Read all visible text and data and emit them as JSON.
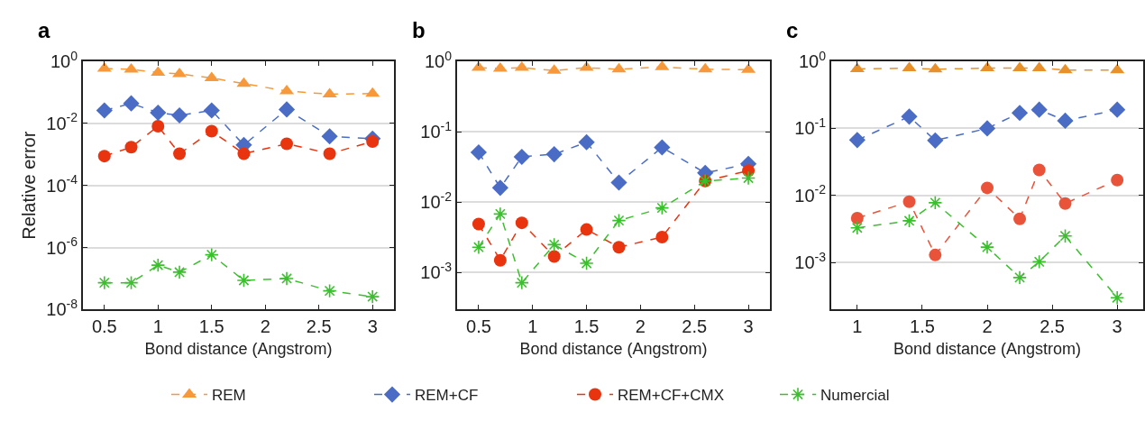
{
  "chart_data": [
    {
      "type": "line",
      "title": "a",
      "xlabel": "Bond distance (Angstrom)",
      "ylabel": "Relative error",
      "log": "y",
      "grid": "y",
      "legend": "bottom",
      "line_style": "dashed",
      "xlim": [
        0.3,
        3.2
      ],
      "xticks": [
        0.5,
        1,
        1.5,
        2,
        2.5,
        3
      ],
      "ylim": [
        1e-08,
        1
      ],
      "yticks": [
        {
          "value": 1e-08,
          "label": "10$^{-8}$"
        },
        {
          "value": 1e-06,
          "label": "10$^{-6}$"
        },
        {
          "value": 0.0001,
          "label": "10$^{-4}$"
        },
        {
          "value": 0.01,
          "label": "10$^{-2}$"
        },
        {
          "value": 1,
          "label": "10$^{0}$"
        }
      ],
      "x": [
        0.5,
        0.75,
        1,
        1.2,
        1.5,
        1.8,
        2.2,
        2.6,
        3
      ],
      "series": [
        {
          "name": "REM",
          "color": "#f7993a",
          "marker": "triangle",
          "values": [
            0.58,
            0.55,
            0.43,
            0.39,
            0.29,
            0.19,
            0.11,
            0.087,
            0.091
          ]
        },
        {
          "name": "REM+CF",
          "color": "#4a6cc4",
          "marker": "diamond",
          "values": [
            0.026,
            0.044,
            0.022,
            0.018,
            0.026,
            0.002,
            0.028,
            0.0038,
            0.0032
          ]
        },
        {
          "name": "REM+CF+CMX",
          "color": "#e8340f",
          "marker": "circle",
          "values": [
            0.00088,
            0.0017,
            0.0081,
            0.00105,
            0.0056,
            0.00105,
            0.0022,
            0.00105,
            0.0026
          ]
        },
        {
          "name": "Numercial",
          "color": "#3cbf2e",
          "marker": "cross",
          "values": [
            7.3e-08,
            7.3e-08,
            2.7e-07,
            1.6e-07,
            5.8e-07,
            8.7e-08,
            1e-07,
            4e-08,
            2.6e-08
          ]
        }
      ]
    },
    {
      "type": "line",
      "title": "b",
      "xlabel": "Bond distance (Angstrom)",
      "log": "y",
      "grid": "y",
      "line_style": "dashed",
      "xlim": [
        0.3,
        3.2
      ],
      "xticks": [
        0.5,
        1,
        1.5,
        2,
        2.5,
        3
      ],
      "ylim": [
        0.0003,
        1
      ],
      "yticks": [
        {
          "value": 0.001,
          "label": "10$^{-3}$"
        },
        {
          "value": 0.01,
          "label": "10$^{-2}$"
        },
        {
          "value": 0.1,
          "label": "10$^{-1}$"
        },
        {
          "value": 1,
          "label": "10$^{0}$"
        }
      ],
      "x": [
        0.5,
        0.7,
        0.9,
        1.2,
        1.5,
        1.8,
        2.2,
        2.6,
        3
      ],
      "series": [
        {
          "color": "#f7993a",
          "marker": "triangle",
          "values": [
            0.81,
            0.79,
            0.81,
            0.74,
            0.81,
            0.77,
            0.83,
            0.77,
            0.76
          ]
        },
        {
          "color": "#4a6cc4",
          "marker": "diamond",
          "values": [
            0.051,
            0.016,
            0.044,
            0.048,
            0.071,
            0.019,
            0.06,
            0.026,
            0.035
          ]
        },
        {
          "color": "#e8340f",
          "marker": "circle",
          "values": [
            0.0049,
            0.0015,
            0.0051,
            0.0017,
            0.0041,
            0.0023,
            0.0032,
            0.02,
            0.028
          ]
        },
        {
          "color": "#3cbf2e",
          "marker": "cross",
          "values": [
            0.0023,
            0.0068,
            0.00072,
            0.0025,
            0.00136,
            0.0055,
            0.0083,
            0.02,
            0.022
          ]
        }
      ]
    },
    {
      "type": "line",
      "title": "c",
      "xlabel": "Bond distance (Angstrom)",
      "log": "y",
      "grid": "y",
      "line_style": "dashed",
      "xlim": [
        0.8,
        3.2
      ],
      "xticks": [
        1,
        1.5,
        2,
        2.5,
        3
      ],
      "ylim": [
        0.0002,
        1
      ],
      "yticks": [
        {
          "value": 0.001,
          "label": "10$^{-3}$"
        },
        {
          "value": 0.01,
          "label": "10$^{-2}$"
        },
        {
          "value": 0.1,
          "label": "10$^{-1}$"
        },
        {
          "value": 1,
          "label": "10$^{0}$"
        }
      ],
      "x": [
        1,
        1.4,
        1.6,
        2,
        2.25,
        2.4,
        2.6,
        3
      ],
      "series": [
        {
          "color": "#e8902a",
          "marker": "triangle",
          "values": [
            0.77,
            0.79,
            0.76,
            0.79,
            0.79,
            0.79,
            0.74,
            0.74
          ]
        },
        {
          "color": "#4a6cc4",
          "marker": "diamond",
          "values": [
            0.067,
            0.15,
            0.066,
            0.1,
            0.17,
            0.19,
            0.13,
            0.19
          ]
        },
        {
          "color": "#e8533a",
          "marker": "circle",
          "values": [
            0.0046,
            0.0081,
            0.0013,
            0.013,
            0.0045,
            0.024,
            0.0076,
            0.017
          ]
        },
        {
          "color": "#3cbf2e",
          "marker": "cross",
          "values": [
            0.0033,
            0.0042,
            0.0078,
            0.0017,
            0.0006,
            0.00103,
            0.0025,
            0.0003
          ]
        }
      ]
    }
  ]
}
